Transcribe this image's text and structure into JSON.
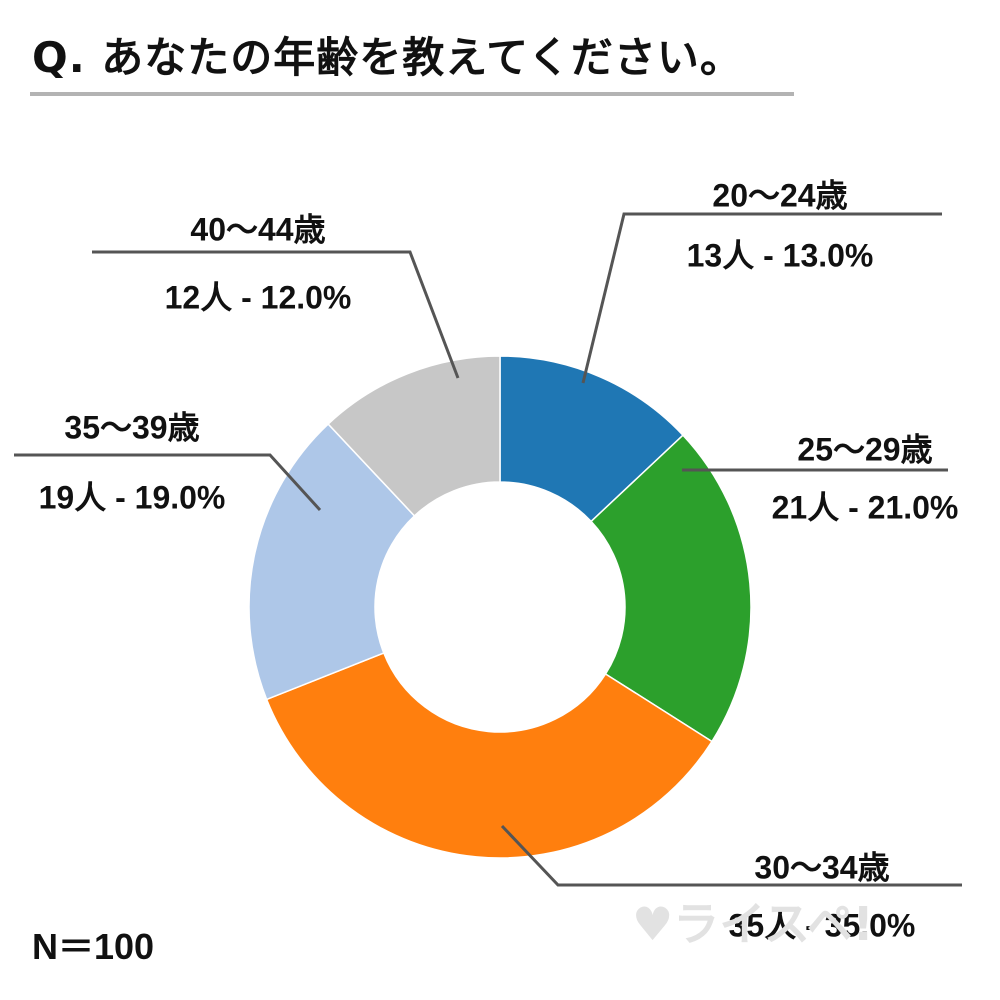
{
  "title": "Q. あなたの年齢を教えてください。",
  "sample_size": "N＝100",
  "watermark": "♥ライスペ!",
  "chart_data": {
    "type": "donut",
    "title": "Q. あなたの年齢を教えてください。",
    "unit": "人",
    "total": 100,
    "start_angle_deg": 0,
    "direction": "clockwise",
    "slices": [
      {
        "label": "20〜24歳",
        "value": 13,
        "percent": 13.0,
        "value_text": "13人 - 13.0%",
        "color": "#1f77b4"
      },
      {
        "label": "25〜29歳",
        "value": 21,
        "percent": 21.0,
        "value_text": "21人 - 21.0%",
        "color": "#2ca02c"
      },
      {
        "label": "30〜34歳",
        "value": 35,
        "percent": 35.0,
        "value_text": "35人 - 35.0%",
        "color": "#ff7f0e"
      },
      {
        "label": "35〜39歳",
        "value": 19,
        "percent": 19.0,
        "value_text": "19人 - 19.0%",
        "color": "#aec7e8"
      },
      {
        "label": "40〜44歳",
        "value": 12,
        "percent": 12.0,
        "value_text": "12人 - 12.0%",
        "color": "#c7c7c7"
      }
    ]
  }
}
